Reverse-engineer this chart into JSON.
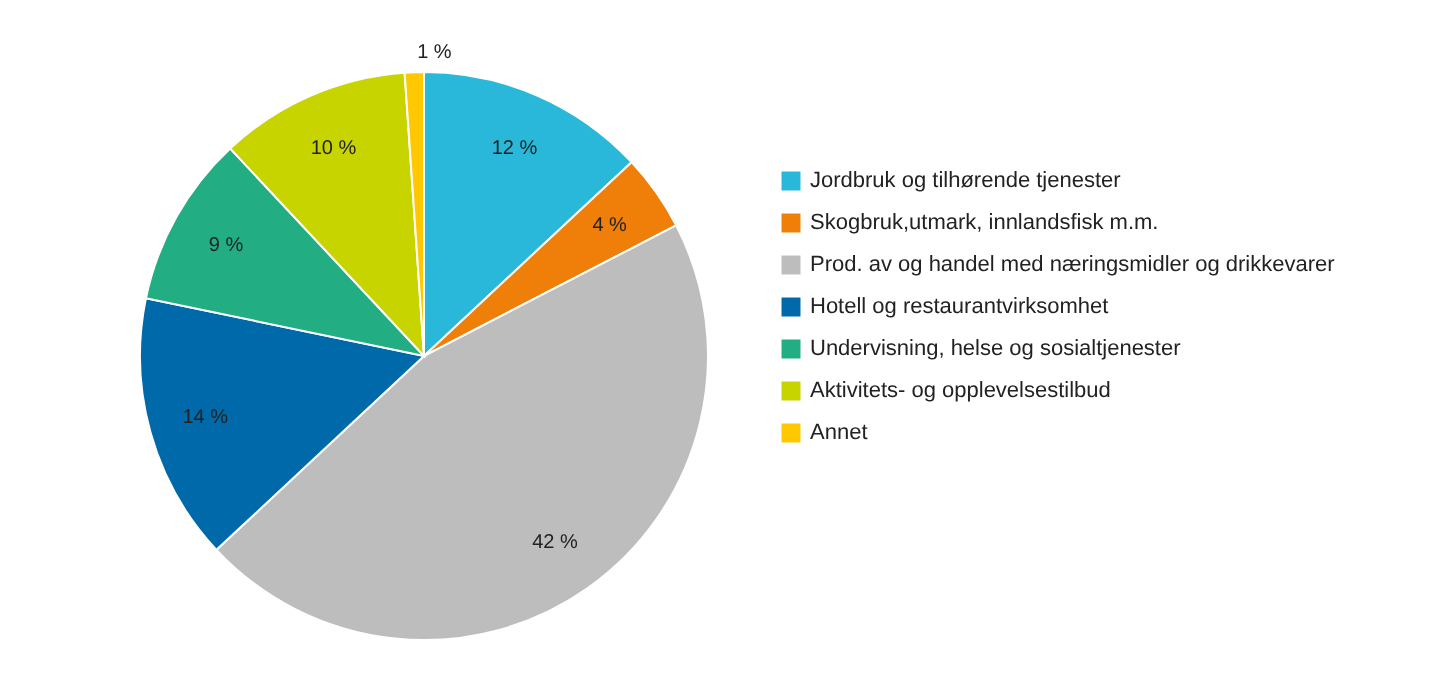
{
  "chart_data": {
    "type": "pie",
    "categories": [
      "Jordbruk og tilhørende tjenester",
      "Skogbruk,utmark, innlandsfisk m.m.",
      "Prod. av og handel med næringsmidler og drikkevarer",
      "Hotell og restaurantvirksomhet",
      "Undervisning, helse og sosialtjenester",
      "Aktivitets- og opplevelsestilbud",
      "Annet"
    ],
    "values": [
      12,
      4,
      42,
      14,
      9,
      10,
      1
    ],
    "value_labels": [
      "12 %",
      "4 %",
      "42 %",
      "14 %",
      "9 %",
      "10 %",
      "1 %"
    ],
    "colors": [
      "#29b8d9",
      "#f07f09",
      "#bdbdbd",
      "#0069aa",
      "#22ae82",
      "#c8d400",
      "#ffc800"
    ],
    "legend": "right"
  }
}
